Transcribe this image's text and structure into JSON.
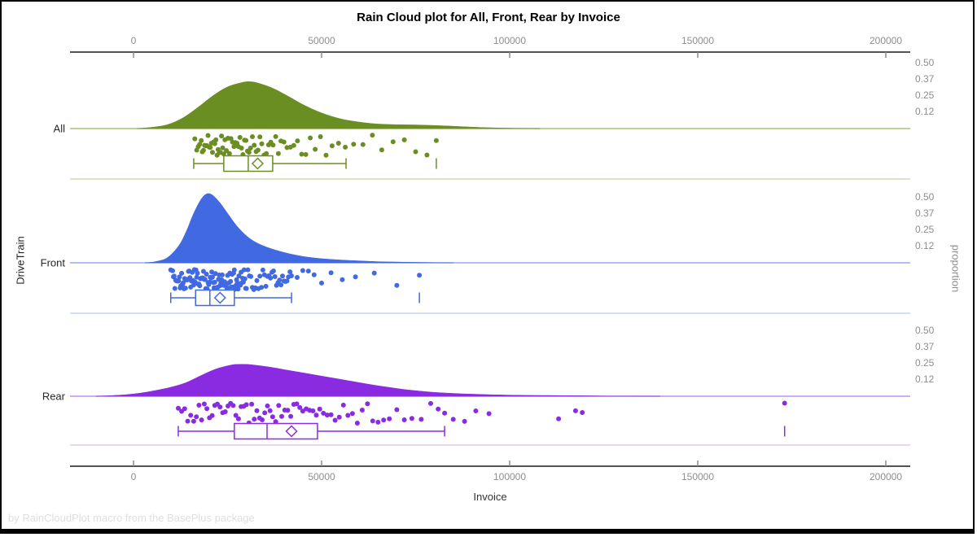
{
  "title": "Rain Cloud plot for All, Front, Rear by Invoice",
  "footnote": "by RainCloudPlot macro from the BasePlus package",
  "x_axis": {
    "title": "Invoice",
    "tick_labels": [
      "0",
      "50000",
      "100000",
      "150000",
      "200000"
    ],
    "tick_values": [
      0,
      50000,
      100000,
      150000,
      200000
    ],
    "range": [
      0,
      200000
    ]
  },
  "left_axis": {
    "title": "DriveTrain",
    "categories": [
      "All",
      "Front",
      "Rear"
    ]
  },
  "right_axis": {
    "title": "proportion",
    "tick_labels": [
      "0.50",
      "0.37",
      "0.25",
      "0.12"
    ],
    "tick_values": [
      0.5,
      0.375,
      0.25,
      0.125
    ]
  },
  "chart_data": {
    "type": "raincloud (half-violin + jitter strip + horizontal box plot)",
    "x_variable": "Invoice",
    "group_variable": "DriveTrain",
    "x_range": [
      0,
      200000
    ],
    "proportion_axis_range": [
      0,
      0.5
    ],
    "grid": false,
    "groups": [
      {
        "name": "All",
        "color": "#6B8E23",
        "baseline_color": "#A9BF77",
        "separator_color": "#CFDCAB",
        "density": [
          [
            1000,
            0
          ],
          [
            5000,
            0.01
          ],
          [
            9000,
            0.03
          ],
          [
            13000,
            0.08
          ],
          [
            17000,
            0.16
          ],
          [
            21000,
            0.25
          ],
          [
            25000,
            0.32
          ],
          [
            29000,
            0.355
          ],
          [
            31000,
            0.36
          ],
          [
            33000,
            0.35
          ],
          [
            37000,
            0.31
          ],
          [
            41000,
            0.25
          ],
          [
            45000,
            0.185
          ],
          [
            50000,
            0.12
          ],
          [
            55000,
            0.075
          ],
          [
            60000,
            0.05
          ],
          [
            65000,
            0.035
          ],
          [
            70000,
            0.03
          ],
          [
            75000,
            0.028
          ],
          [
            80000,
            0.024
          ],
          [
            85000,
            0.018
          ],
          [
            90000,
            0.011
          ],
          [
            95000,
            0.006
          ],
          [
            100000,
            0.003
          ],
          [
            105000,
            0.001
          ],
          [
            108000,
            0
          ]
        ],
        "box": {
          "min": 16000,
          "q1": 24000,
          "median": 30500,
          "mean": 33000,
          "q3": 37000,
          "max": 56500,
          "outliers": [
            80500
          ]
        },
        "points": [
          16300,
          16800,
          17200,
          17600,
          18000,
          18300,
          18600,
          18900,
          19200,
          19500,
          19800,
          20100,
          20400,
          20700,
          21000,
          21300,
          21600,
          21900,
          22200,
          22500,
          22800,
          23100,
          23400,
          23700,
          24000,
          24300,
          24700,
          25100,
          25500,
          25900,
          26300,
          26700,
          27100,
          27500,
          27900,
          28300,
          28700,
          29100,
          29500,
          29900,
          30300,
          30700,
          31100,
          31600,
          32100,
          32600,
          33100,
          33600,
          34100,
          34700,
          35300,
          35900,
          36500,
          37100,
          37800,
          38500,
          39200,
          40000,
          40800,
          41700,
          42600,
          43600,
          44700,
          45800,
          47000,
          48300,
          49700,
          51200,
          52800,
          54500,
          56300,
          58500,
          61000,
          63500,
          66000,
          69000,
          72000,
          75000,
          78000,
          80500
        ]
      },
      {
        "name": "Front",
        "color": "#4169E1",
        "baseline_color": "#93ABEC",
        "separator_color": "#C6D4F6",
        "density": [
          [
            3000,
            0
          ],
          [
            6000,
            0.01
          ],
          [
            9000,
            0.04
          ],
          [
            12000,
            0.13
          ],
          [
            14000,
            0.24
          ],
          [
            16000,
            0.38
          ],
          [
            18000,
            0.49
          ],
          [
            19500,
            0.53
          ],
          [
            21000,
            0.52
          ],
          [
            23000,
            0.46
          ],
          [
            25000,
            0.38
          ],
          [
            27000,
            0.3
          ],
          [
            29000,
            0.235
          ],
          [
            31000,
            0.185
          ],
          [
            33000,
            0.15
          ],
          [
            35000,
            0.125
          ],
          [
            37000,
            0.105
          ],
          [
            40000,
            0.08
          ],
          [
            43000,
            0.06
          ],
          [
            46000,
            0.045
          ],
          [
            50000,
            0.032
          ],
          [
            55000,
            0.022
          ],
          [
            60000,
            0.015
          ],
          [
            65000,
            0.009
          ],
          [
            70000,
            0.006
          ],
          [
            75000,
            0.004
          ],
          [
            80000,
            0.002
          ],
          [
            85000,
            0
          ]
        ],
        "box": {
          "min": 9900,
          "q1": 16500,
          "median": 20300,
          "mean": 23000,
          "q3": 26800,
          "max": 42000,
          "outliers": [
            76000
          ]
        },
        "points": [
          9900,
          10400,
          10600,
          10800,
          11000,
          11200,
          11400,
          11600,
          11800,
          12000,
          12200,
          12400,
          12600,
          12800,
          13000,
          13200,
          13400,
          13600,
          13800,
          14000,
          14200,
          14400,
          14600,
          14800,
          15000,
          15200,
          15400,
          15600,
          15800,
          16000,
          16200,
          16400,
          16600,
          16800,
          17000,
          17200,
          17400,
          17600,
          17800,
          18000,
          18200,
          18400,
          18600,
          18800,
          19000,
          19200,
          19400,
          19600,
          19800,
          20000,
          20200,
          20400,
          20600,
          20800,
          21000,
          21200,
          21400,
          21600,
          21800,
          22000,
          22200,
          22400,
          22600,
          22800,
          23000,
          23200,
          23400,
          23600,
          23800,
          24000,
          24200,
          24400,
          24600,
          24800,
          25000,
          25200,
          25400,
          25600,
          25800,
          26000,
          26200,
          26400,
          26600,
          26800,
          27000,
          27200,
          27400,
          27600,
          27800,
          28000,
          28200,
          28400,
          28600,
          28800,
          29000,
          29200,
          29400,
          29600,
          29800,
          30000,
          30400,
          30800,
          31200,
          31600,
          32000,
          32400,
          32800,
          33200,
          33600,
          34000,
          34400,
          34800,
          35200,
          35600,
          36000,
          36400,
          36800,
          37200,
          37600,
          38000,
          38400,
          38800,
          39200,
          39600,
          40000,
          40400,
          40800,
          41200,
          41600,
          42000,
          43500,
          45000,
          46500,
          48000,
          50000,
          52500,
          55500,
          59000,
          64000,
          70000,
          76000
        ]
      },
      {
        "name": "Rear",
        "color": "#8A2BE2",
        "baseline_color": "#BD8FEE",
        "separator_color": "#DFC9F6",
        "density": [
          [
            -10000,
            0
          ],
          [
            -6000,
            0.005
          ],
          [
            -2000,
            0.012
          ],
          [
            2000,
            0.025
          ],
          [
            6000,
            0.045
          ],
          [
            10000,
            0.07
          ],
          [
            14000,
            0.105
          ],
          [
            18000,
            0.16
          ],
          [
            22000,
            0.21
          ],
          [
            26000,
            0.24
          ],
          [
            28000,
            0.245
          ],
          [
            30000,
            0.245
          ],
          [
            32000,
            0.24
          ],
          [
            36000,
            0.225
          ],
          [
            40000,
            0.205
          ],
          [
            44000,
            0.185
          ],
          [
            48000,
            0.165
          ],
          [
            52000,
            0.145
          ],
          [
            56000,
            0.125
          ],
          [
            60000,
            0.105
          ],
          [
            64000,
            0.085
          ],
          [
            68000,
            0.068
          ],
          [
            72000,
            0.052
          ],
          [
            76000,
            0.04
          ],
          [
            80000,
            0.03
          ],
          [
            85000,
            0.022
          ],
          [
            90000,
            0.016
          ],
          [
            95000,
            0.012
          ],
          [
            100000,
            0.009
          ],
          [
            105000,
            0.007
          ],
          [
            110000,
            0.006
          ],
          [
            115000,
            0.005
          ],
          [
            120000,
            0.004
          ],
          [
            125000,
            0.002
          ],
          [
            130000,
            0.001
          ],
          [
            140000,
            0
          ]
        ],
        "box": {
          "min": 11900,
          "q1": 26800,
          "median": 35500,
          "mean": 42000,
          "q3": 48900,
          "max": 82700,
          "outliers": [
            173100
          ]
        },
        "points": [
          11900,
          12800,
          13600,
          14400,
          15200,
          16000,
          16700,
          17400,
          18100,
          18800,
          19500,
          20200,
          20900,
          21600,
          22300,
          23000,
          23700,
          24400,
          25100,
          25800,
          26500,
          27200,
          27900,
          28600,
          29300,
          30000,
          30700,
          31400,
          32100,
          32800,
          33500,
          34200,
          34900,
          35600,
          36300,
          37000,
          37800,
          38600,
          39400,
          40200,
          41000,
          41800,
          42600,
          43400,
          44200,
          45000,
          45900,
          46800,
          47700,
          48600,
          49500,
          50500,
          51500,
          52500,
          53600,
          54700,
          55800,
          57000,
          58200,
          59500,
          60800,
          62200,
          63600,
          65000,
          66500,
          68000,
          70000,
          72000,
          74000,
          76500,
          79000,
          81000,
          82700,
          85000,
          88000,
          91000,
          94500,
          113000,
          117500,
          119300,
          173100
        ]
      }
    ]
  }
}
